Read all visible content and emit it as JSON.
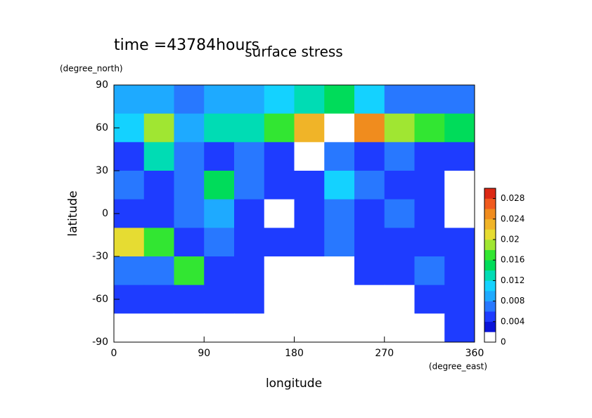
{
  "chart_data": {
    "type": "contourf",
    "title": "surface stress",
    "subtitle": "time =43784hours",
    "x_label": "longitude",
    "x_unit": "(degree_east)",
    "y_label": "latitude",
    "y_unit": "(degree_north)",
    "xlim": [
      0,
      360
    ],
    "ylim": [
      -90,
      90
    ],
    "xticks": [
      0,
      90,
      180,
      270,
      360
    ],
    "yticks": [
      90,
      60,
      30,
      0,
      -30,
      -60,
      -90
    ],
    "x": [
      15,
      45,
      75,
      105,
      135,
      165,
      195,
      225,
      255,
      285,
      315,
      345
    ],
    "y": [
      80,
      60,
      40,
      20,
      0,
      -20,
      -40,
      -60,
      -80
    ],
    "z": [
      [
        0.008,
        0.008,
        0.006,
        0.008,
        0.008,
        0.01,
        0.012,
        0.014,
        0.01,
        0.006,
        0.006,
        0.006
      ],
      [
        0.01,
        0.018,
        0.008,
        0.012,
        0.012,
        0.016,
        0.022,
        0.03,
        0.024,
        0.018,
        0.016,
        0.014
      ],
      [
        0.004,
        0.012,
        0.006,
        0.004,
        0.006,
        0.004,
        0.0,
        0.006,
        0.004,
        0.006,
        0.004,
        0.004
      ],
      [
        0.006,
        0.004,
        0.006,
        0.014,
        0.006,
        0.004,
        0.004,
        0.01,
        0.006,
        0.004,
        0.004,
        0.0
      ],
      [
        0.004,
        0.004,
        0.006,
        0.008,
        0.004,
        0.0,
        0.004,
        0.006,
        0.004,
        0.006,
        0.004,
        0.0
      ],
      [
        0.02,
        0.016,
        0.004,
        0.006,
        0.004,
        0.004,
        0.004,
        0.006,
        0.004,
        0.004,
        0.004,
        0.004
      ],
      [
        0.006,
        0.006,
        0.016,
        0.004,
        0.004,
        0.0,
        0.0,
        0.0,
        0.004,
        0.004,
        0.006,
        0.004
      ],
      [
        0.004,
        0.004,
        0.004,
        0.004,
        0.004,
        0.0,
        0.0,
        0.0,
        0.0,
        0.0,
        0.004,
        0.004
      ],
      [
        0.0,
        0.0,
        0.0,
        0.0,
        0.0,
        0.0,
        0.0,
        0.0,
        0.0,
        0.0,
        0.0,
        0.004
      ]
    ],
    "levels": [
      0,
      0.002,
      0.004,
      0.006,
      0.008,
      0.01,
      0.012,
      0.014,
      0.016,
      0.018,
      0.02,
      0.022,
      0.024,
      0.026,
      0.028,
      0.03
    ],
    "colors": [
      "#ffffff",
      "#0a14d8",
      "#1e3cff",
      "#2878ff",
      "#1eaaff",
      "#14d2ff",
      "#00dcb4",
      "#00dc5a",
      "#32e632",
      "#a0e632",
      "#e6dc32",
      "#f0b428",
      "#f08c1e",
      "#f05a1e",
      "#dc2814"
    ],
    "over_color": "#ffffff",
    "cbar_ticks": [
      0,
      0.004,
      0.008,
      0.012,
      0.016,
      0.02,
      0.024,
      0.028
    ]
  }
}
